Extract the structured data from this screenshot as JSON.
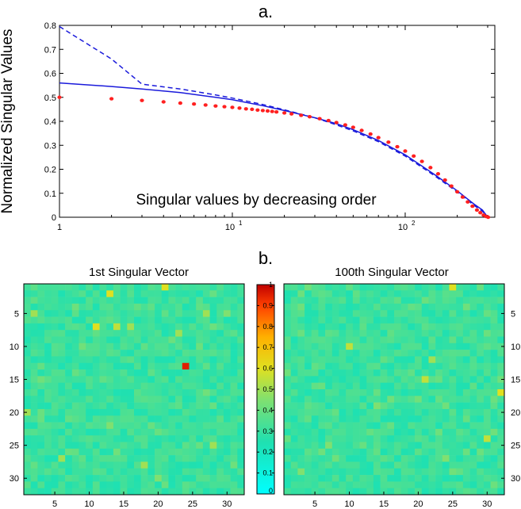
{
  "figure": {
    "label_a": "a.",
    "label_b": "b."
  },
  "chart_data": [
    {
      "type": "line",
      "title": "a.",
      "xlabel": "",
      "ylabel": "Normalized Singular Values",
      "annotation": "Singular values by decreasing order",
      "xscale": "log",
      "xlim": [
        1,
        330
      ],
      "ylim": [
        0,
        0.8
      ],
      "xtick_labels": [
        {
          "base": "1",
          "exp": ""
        },
        {
          "base": "10",
          "exp": "1"
        },
        {
          "base": "10",
          "exp": "2"
        }
      ],
      "ytick_labels": [
        "0",
        "0.1",
        "0.2",
        "0.3",
        "0.4",
        "0.5",
        "0.6",
        "0.7",
        "0.8"
      ],
      "grid": false,
      "legend": false,
      "series": [
        {
          "style": "solid",
          "color": "#1a1adb",
          "x": [
            1,
            2,
            3,
            5,
            8,
            10,
            15,
            20,
            30,
            40,
            50,
            70,
            100,
            150,
            200,
            250,
            280,
            300
          ],
          "y": [
            0.56,
            0.545,
            0.535,
            0.52,
            0.5,
            0.49,
            0.465,
            0.445,
            0.415,
            0.39,
            0.365,
            0.32,
            0.26,
            0.175,
            0.11,
            0.055,
            0.03,
            0.0
          ]
        },
        {
          "style": "dashed",
          "color": "#1a1adb",
          "x": [
            1,
            2,
            3,
            5,
            8,
            10,
            15,
            20,
            30,
            40,
            50,
            70,
            100,
            150,
            200,
            250,
            280,
            300
          ],
          "y": [
            0.795,
            0.66,
            0.555,
            0.535,
            0.51,
            0.497,
            0.47,
            0.448,
            0.415,
            0.385,
            0.36,
            0.315,
            0.255,
            0.17,
            0.105,
            0.05,
            0.025,
            0.0
          ]
        },
        {
          "style": "markers",
          "color": "#ff2020",
          "x": [
            1,
            2,
            3,
            4,
            5,
            6,
            7,
            8,
            9,
            10,
            11,
            12,
            13,
            14,
            15,
            16,
            17,
            18,
            20,
            22,
            25,
            28,
            32,
            36,
            40,
            45,
            50,
            56,
            63,
            70,
            80,
            90,
            100,
            112,
            125,
            140,
            155,
            170,
            185,
            200,
            215,
            230,
            245,
            260,
            272,
            284,
            294,
            302
          ],
          "y": [
            0.5,
            0.494,
            0.487,
            0.481,
            0.476,
            0.472,
            0.468,
            0.464,
            0.461,
            0.458,
            0.455,
            0.452,
            0.45,
            0.447,
            0.445,
            0.443,
            0.441,
            0.439,
            0.435,
            0.431,
            0.425,
            0.419,
            0.411,
            0.403,
            0.395,
            0.385,
            0.375,
            0.362,
            0.347,
            0.332,
            0.313,
            0.294,
            0.276,
            0.255,
            0.233,
            0.207,
            0.181,
            0.155,
            0.13,
            0.106,
            0.084,
            0.064,
            0.046,
            0.03,
            0.019,
            0.009,
            0.003,
            0.0
          ]
        }
      ]
    },
    {
      "type": "heatmap",
      "title": "1st Singular Vector",
      "size": 32,
      "tick_labels": [
        "5",
        "10",
        "15",
        "20",
        "25",
        "30"
      ],
      "tick_values": [
        5,
        10,
        15,
        20,
        25,
        30
      ],
      "base_value": 0.3,
      "bright_cells": [
        {
          "row": 1,
          "col": 21,
          "value": 0.6
        },
        {
          "row": 2,
          "col": 13,
          "value": 0.6
        },
        {
          "row": 5,
          "col": 2,
          "value": 0.5
        },
        {
          "row": 5,
          "col": 27,
          "value": 0.5
        },
        {
          "row": 5,
          "col": 30,
          "value": 0.45
        },
        {
          "row": 7,
          "col": 11,
          "value": 0.6
        },
        {
          "row": 7,
          "col": 14,
          "value": 0.55
        },
        {
          "row": 7,
          "col": 16,
          "value": 0.5
        },
        {
          "row": 8,
          "col": 23,
          "value": 0.5
        },
        {
          "row": 13,
          "col": 24,
          "value": 0.95
        },
        {
          "row": 20,
          "col": 1,
          "value": 0.5
        },
        {
          "row": 22,
          "col": 13,
          "value": 0.45
        },
        {
          "row": 25,
          "col": 28,
          "value": 0.5
        },
        {
          "row": 27,
          "col": 6,
          "value": 0.5
        },
        {
          "row": 28,
          "col": 18,
          "value": 0.5
        },
        {
          "row": 30,
          "col": 20,
          "value": 0.45
        }
      ]
    },
    {
      "type": "heatmap",
      "title": "100th Singular Vector",
      "size": 32,
      "tick_labels": [
        "5",
        "10",
        "15",
        "20",
        "25",
        "30"
      ],
      "tick_values": [
        5,
        10,
        15,
        20,
        25,
        30
      ],
      "base_value": 0.3,
      "bright_cells": [
        {
          "row": 1,
          "col": 25,
          "value": 0.6
        },
        {
          "row": 10,
          "col": 10,
          "value": 0.55
        },
        {
          "row": 12,
          "col": 22,
          "value": 0.5
        },
        {
          "row": 15,
          "col": 21,
          "value": 0.55
        },
        {
          "row": 17,
          "col": 32,
          "value": 0.6
        },
        {
          "row": 19,
          "col": 14,
          "value": 0.45
        },
        {
          "row": 24,
          "col": 30,
          "value": 0.55
        },
        {
          "row": 25,
          "col": 7,
          "value": 0.45
        },
        {
          "row": 29,
          "col": 3,
          "value": 0.45
        },
        {
          "row": 27,
          "col": 24,
          "value": 0.45
        }
      ]
    },
    {
      "type": "colorbar",
      "range": [
        0,
        1
      ],
      "tick_labels": [
        "0",
        "0.1",
        "0.2",
        "0.3",
        "0.4",
        "0.5",
        "0.6",
        "0.7",
        "0.8",
        "0.9",
        "1"
      ]
    }
  ]
}
